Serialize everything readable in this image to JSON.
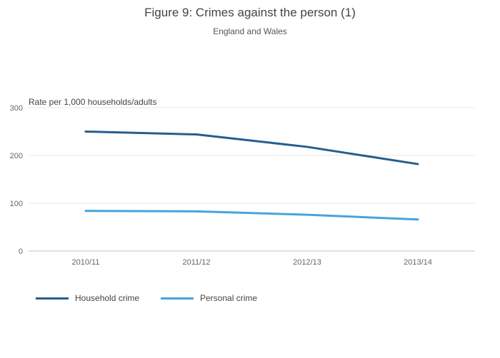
{
  "title": "Figure 9: Crimes against the person (1)",
  "subtitle": "England and Wales",
  "chart_data": {
    "type": "line",
    "categories": [
      "2010/11",
      "2011/12",
      "2012/13",
      "2013/14"
    ],
    "series": [
      {
        "name": "Household crime",
        "values": [
          250,
          244,
          218,
          182
        ],
        "color": "#265e8d"
      },
      {
        "name": "Personal crime",
        "values": [
          84,
          83,
          76,
          66
        ],
        "color": "#47a4d9"
      }
    ],
    "title": "Figure 9: Crimes against the person (1)",
    "subtitle": "England and Wales",
    "xlabel": "",
    "ylabel": "Rate per 1,000 households/adults",
    "ylim": [
      0,
      300
    ],
    "yticks": [
      0,
      100,
      200,
      300
    ],
    "grid": true,
    "legend_position": "bottom",
    "colors": {
      "grid": "#e6e6e6",
      "zero_line": "#c0c0c0",
      "tick_text": "#666666",
      "axis_title_text": "#444444",
      "background": "#ffffff"
    }
  }
}
